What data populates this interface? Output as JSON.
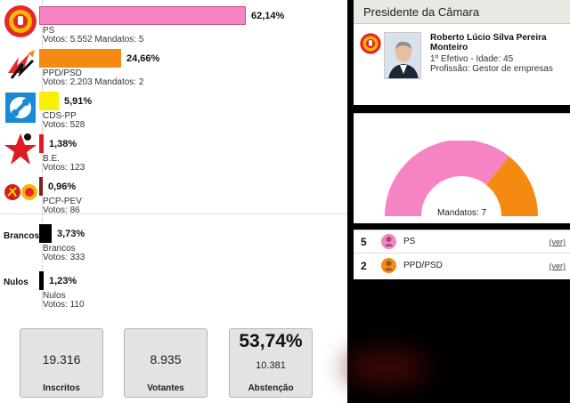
{
  "parties": [
    {
      "name": "PS",
      "pct_label": "62,14%",
      "pct": 62.14,
      "votes_line": "Votos: 5.552 Mandatos: 5",
      "color": "#f683c4",
      "icon": "ps-rose-fist-icon"
    },
    {
      "name": "PPD/PSD",
      "pct_label": "24,66%",
      "pct": 24.66,
      "votes_line": "Votos: 2.203 Mandatos: 2",
      "color": "#f48a11",
      "icon": "psd-arrows-icon"
    },
    {
      "name": "CDS-PP",
      "pct_label": "5,91%",
      "pct": 5.91,
      "votes_line": "Votos: 528",
      "color": "#f7f000",
      "icon": "cds-pp-icon"
    },
    {
      "name": "B.E.",
      "pct_label": "1,38%",
      "pct": 1.38,
      "votes_line": "Votos: 123",
      "color": "#e01a22",
      "icon": "be-star-icon"
    },
    {
      "name": "PCP-PEV",
      "pct_label": "0,96%",
      "pct": 0.96,
      "votes_line": "Votos: 86",
      "color": "#8b1a1a",
      "icon": "pcp-pev-icon"
    }
  ],
  "others": [
    {
      "side_label": "Brancos",
      "name": "Brancos",
      "pct_label": "3,73%",
      "pct": 3.73,
      "votes_line": "Votos: 333",
      "color": "#000000"
    },
    {
      "side_label": "Nulos",
      "name": "Nulos",
      "pct_label": "1,23%",
      "pct": 1.23,
      "votes_line": "Votos: 110",
      "color": "#000000"
    }
  ],
  "stats": {
    "inscritos": {
      "value": "19.316",
      "label": "Inscritos"
    },
    "votantes": {
      "value": "8.935",
      "label": "Votantes"
    },
    "abstencao": {
      "pct": "53,74%",
      "value": "10.381",
      "label": "Abstenção"
    }
  },
  "president": {
    "header": "Presidente da Câmara",
    "name": "Roberto Lúcio Silva Pereira Monteiro",
    "line1": "1º Efetivo - Idade: 45",
    "line2": "Profissão: Gestor de empresas"
  },
  "seats": {
    "label": "Mandatos: 7",
    "rows": [
      {
        "count": "5",
        "name": "PS",
        "link": "(ver)",
        "color": "#f683c4"
      },
      {
        "count": "2",
        "name": "PPD/PSD",
        "link": "(ver)",
        "color": "#f48a11"
      }
    ]
  }
}
